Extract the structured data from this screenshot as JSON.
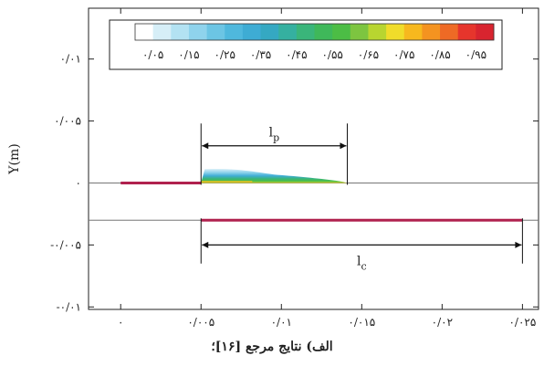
{
  "chart_data": {
    "type": "contour",
    "ylabel": "Y(m)",
    "xlim": [
      -0.002,
      0.026
    ],
    "ylim": [
      -0.0102,
      0.0141
    ],
    "x_ticks": [
      {
        "value": 0,
        "label": "۰"
      },
      {
        "value": 0.005,
        "label": "۰/۰۰۵"
      },
      {
        "value": 0.01,
        "label": "۰/۰۱"
      },
      {
        "value": 0.015,
        "label": "۰/۰۱۵"
      },
      {
        "value": 0.02,
        "label": "۰/۰۲"
      },
      {
        "value": 0.025,
        "label": "۰/۰۲۵"
      }
    ],
    "y_ticks": [
      {
        "value": 0.01,
        "label": "۰/۰۱"
      },
      {
        "value": 0.005,
        "label": "۰/۰۰۵"
      },
      {
        "value": 0,
        "label": "۰"
      },
      {
        "value": -0.005,
        "label": "-۰/۰۰۵"
      },
      {
        "value": -0.01,
        "label": "-۰/۰۱"
      }
    ],
    "colorbar": {
      "colors": [
        "#ffffff",
        "#d6eef7",
        "#b3e2f2",
        "#8fd3ec",
        "#6cc5e4",
        "#4fb8dd",
        "#3eacd4",
        "#35a8c2",
        "#35b0a0",
        "#3ab57a",
        "#3fb85a",
        "#4cbd45",
        "#7dc540",
        "#b8d530",
        "#f0dc2a",
        "#f7b81e",
        "#f49320",
        "#ee6a25",
        "#e6352c",
        "#d8242f"
      ],
      "labels": [
        "۰/۰۵",
        "۰/۱۵",
        "۰/۲۵",
        "۰/۳۵",
        "۰/۴۵",
        "۰/۵۵",
        "۰/۶۵",
        "۰/۷۵",
        "۰/۸۵",
        "۰/۹۵"
      ]
    },
    "wall_upper": {
      "x_start": 0,
      "x_end": 0.005,
      "y": 0
    },
    "wall_lower": {
      "x_start": 0.005,
      "x_end": 0.025,
      "y": -0.003
    },
    "separator_y": -0.003,
    "plume": {
      "x_start": 0.005,
      "x_end": 0.0141,
      "y_base": 0,
      "max_height": 0.0013
    },
    "annotations": {
      "lp": {
        "main": "l",
        "sub": "p",
        "x1": 0.005,
        "x2": 0.0141,
        "y": 0.003
      },
      "lc": {
        "main": "l",
        "sub": "c",
        "x1": 0.005,
        "x2": 0.025,
        "y": -0.005
      }
    }
  },
  "caption": "الف) نتایج مرجع [۱۶]؛"
}
